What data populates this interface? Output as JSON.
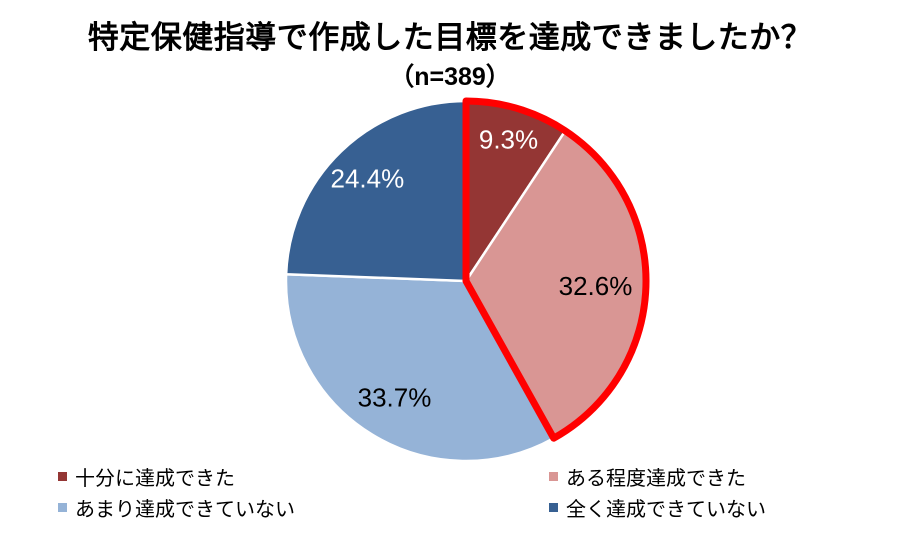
{
  "chart_data": {
    "type": "pie",
    "title": "特定保健指導で作成した目標を達成できましたか？",
    "subtitle": "（n=389）",
    "categories": [
      "十分に達成できた",
      "ある程度達成できた",
      "あまり達成できていない",
      "全く達成できていない"
    ],
    "values": [
      9.3,
      32.6,
      33.7,
      24.4
    ],
    "value_labels": [
      "9.3%",
      "32.6%",
      "33.7%",
      "24.4%"
    ],
    "colors": [
      "#943634",
      "#D99694",
      "#95B3D7",
      "#376092"
    ],
    "label_colors": [
      "#FFFFFF",
      "#000000",
      "#000000",
      "#FFFFFF"
    ],
    "slice_border_color": "#FFFFFF",
    "start_angle": "12-oclock-clockwise",
    "highlight": {
      "slices": [
        0,
        1
      ],
      "outline_color": "#FF0000"
    },
    "legend_position": "bottom"
  },
  "legend": {
    "columns": [
      [
        {
          "label": "十分に達成できた",
          "color": "#943634"
        },
        {
          "label": "あまり達成できていない",
          "color": "#95B3D7"
        }
      ],
      [
        {
          "label": "ある程度達成できた",
          "color": "#D99694"
        },
        {
          "label": "全く達成できていない",
          "color": "#376092"
        }
      ]
    ]
  }
}
